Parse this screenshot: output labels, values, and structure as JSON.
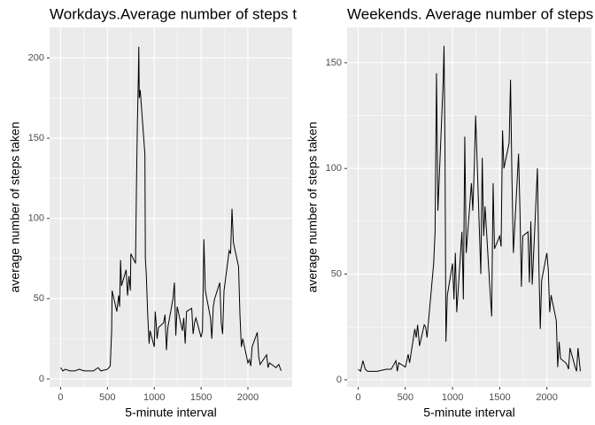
{
  "chart_data": [
    {
      "type": "line",
      "title": "Workdays.Average number of steps taken",
      "x_label": "5-minute interval",
      "y_label": "average number of steps taken",
      "x": [
        0,
        25,
        50,
        100,
        150,
        200,
        250,
        300,
        350,
        400,
        430,
        500,
        530,
        545,
        550,
        600,
        620,
        630,
        640,
        650,
        700,
        715,
        730,
        745,
        750,
        800,
        810,
        820,
        830,
        835,
        840,
        850,
        900,
        905,
        915,
        930,
        945,
        955,
        1000,
        1010,
        1020,
        1030,
        1045,
        1100,
        1115,
        1130,
        1145,
        1200,
        1215,
        1230,
        1245,
        1300,
        1315,
        1330,
        1345,
        1400,
        1415,
        1430,
        1445,
        1500,
        1515,
        1530,
        1545,
        1600,
        1615,
        1630,
        1645,
        1700,
        1715,
        1730,
        1745,
        1800,
        1815,
        1830,
        1845,
        1900,
        1915,
        1930,
        1945,
        2000,
        2015,
        2030,
        2045,
        2100,
        2115,
        2130,
        2200,
        2215,
        2230,
        2300,
        2330,
        2355
      ],
      "values": [
        7,
        5,
        6,
        5,
        5,
        6,
        5,
        5,
        5,
        7,
        5,
        6,
        8,
        30,
        55,
        42,
        52,
        45,
        74,
        58,
        68,
        52,
        64,
        55,
        78,
        72,
        120,
        160,
        188,
        207,
        175,
        180,
        140,
        75,
        65,
        40,
        22,
        30,
        20,
        42,
        35,
        25,
        32,
        35,
        40,
        18,
        32,
        50,
        60,
        27,
        45,
        30,
        38,
        22,
        42,
        44,
        28,
        35,
        38,
        26,
        30,
        87,
        55,
        38,
        25,
        45,
        50,
        60,
        35,
        28,
        55,
        80,
        78,
        106,
        85,
        70,
        40,
        20,
        25,
        10,
        12,
        8,
        20,
        29,
        14,
        9,
        15,
        7,
        10,
        7,
        9,
        5
      ],
      "color": "#000000",
      "xlim": [
        -117.75,
        2472.75
      ],
      "xticks": [
        0,
        500,
        1000,
        1500,
        2000
      ],
      "ylim": [
        -5,
        219
      ],
      "yticks": [
        0,
        50,
        100,
        150,
        200
      ],
      "grid": true
    },
    {
      "type": "line",
      "title": "Weekends. Average number of steps taken",
      "x_label": "5-minute interval",
      "y_label": "average number of steps taken",
      "x": [
        0,
        25,
        50,
        75,
        100,
        200,
        300,
        350,
        400,
        415,
        430,
        500,
        530,
        545,
        600,
        615,
        630,
        650,
        700,
        715,
        730,
        800,
        815,
        830,
        845,
        900,
        910,
        920,
        930,
        945,
        1000,
        1015,
        1030,
        1045,
        1100,
        1115,
        1130,
        1145,
        1200,
        1215,
        1230,
        1245,
        1300,
        1315,
        1330,
        1345,
        1400,
        1415,
        1430,
        1445,
        1500,
        1515,
        1530,
        1545,
        1600,
        1615,
        1630,
        1645,
        1700,
        1715,
        1730,
        1745,
        1800,
        1815,
        1830,
        1845,
        1900,
        1915,
        1930,
        1945,
        2000,
        2015,
        2030,
        2045,
        2100,
        2115,
        2130,
        2145,
        2200,
        2215,
        2230,
        2245,
        2300,
        2315,
        2330,
        2355
      ],
      "values": [
        5,
        4,
        9,
        5,
        4,
        4,
        5,
        5,
        9,
        4,
        8,
        6,
        12,
        8,
        24,
        20,
        26,
        16,
        26,
        25,
        20,
        55,
        70,
        145,
        80,
        140,
        158,
        110,
        18,
        40,
        55,
        38,
        60,
        32,
        70,
        38,
        115,
        60,
        93,
        80,
        100,
        125,
        50,
        105,
        68,
        82,
        40,
        30,
        93,
        62,
        68,
        63,
        118,
        100,
        112,
        142,
        95,
        60,
        107,
        80,
        44,
        68,
        70,
        46,
        75,
        45,
        100,
        55,
        24,
        47,
        60,
        52,
        32,
        40,
        28,
        6,
        18,
        10,
        8,
        7,
        5,
        15,
        6,
        4,
        15,
        4
      ],
      "color": "#000000",
      "xlim": [
        -117.75,
        2472.75
      ],
      "xticks": [
        0,
        500,
        1000,
        1500,
        2000
      ],
      "ylim": [
        -3.4,
        166.7
      ],
      "yticks": [
        0,
        50,
        100,
        150
      ],
      "grid": true
    }
  ]
}
